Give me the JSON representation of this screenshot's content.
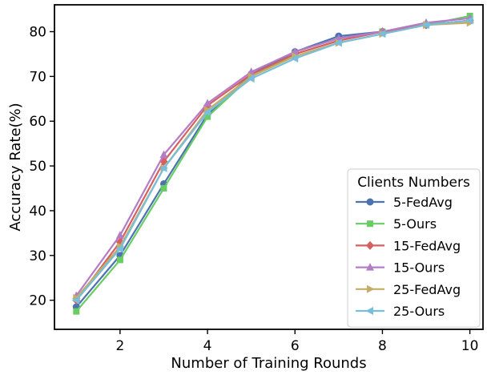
{
  "chart_data": {
    "type": "line",
    "title": "",
    "xlabel": "Number of Training Rounds",
    "ylabel": "Accuracy Rate(%)",
    "x": [
      1,
      2,
      3,
      4,
      5,
      6,
      7,
      8,
      9,
      10
    ],
    "xlim": [
      0.5,
      10.3
    ],
    "ylim": [
      13.5,
      86
    ],
    "xticks": [
      2,
      4,
      6,
      8,
      10
    ],
    "yticks": [
      20,
      30,
      40,
      50,
      60,
      70,
      80
    ],
    "grid": false,
    "legend": {
      "title": "Clients Numbers",
      "placement": "lower-right"
    },
    "series": [
      {
        "name": "5-FedAvg",
        "color": "#4c72b0",
        "marker": "circle",
        "values": [
          18.5,
          30.0,
          46.0,
          61.5,
          70.5,
          75.5,
          79.0,
          80.0,
          81.5,
          82.5
        ]
      },
      {
        "name": "5-Ours",
        "color": "#6acc64",
        "marker": "square",
        "values": [
          17.5,
          29.0,
          45.0,
          61.0,
          70.0,
          75.0,
          78.0,
          80.0,
          81.5,
          83.5
        ]
      },
      {
        "name": "15-FedAvg",
        "color": "#d65f5f",
        "marker": "diamond",
        "values": [
          20.0,
          33.0,
          51.0,
          63.5,
          70.5,
          75.0,
          78.0,
          80.0,
          81.5,
          82.5
        ]
      },
      {
        "name": "15-Ours",
        "color": "#b47cc7",
        "marker": "triangle-up",
        "values": [
          21.0,
          34.5,
          52.5,
          64.0,
          71.0,
          75.5,
          78.5,
          80.0,
          82.0,
          83.0
        ]
      },
      {
        "name": "25-FedAvg",
        "color": "#c4ad66",
        "marker": "triangle-right",
        "values": [
          20.5,
          32.0,
          49.5,
          62.5,
          70.0,
          74.5,
          77.5,
          79.5,
          81.5,
          82.0
        ]
      },
      {
        "name": "25-Ours",
        "color": "#77bedb",
        "marker": "triangle-left",
        "values": [
          20.0,
          31.5,
          49.5,
          62.0,
          69.5,
          74.0,
          77.5,
          79.5,
          81.5,
          82.5
        ]
      }
    ]
  }
}
